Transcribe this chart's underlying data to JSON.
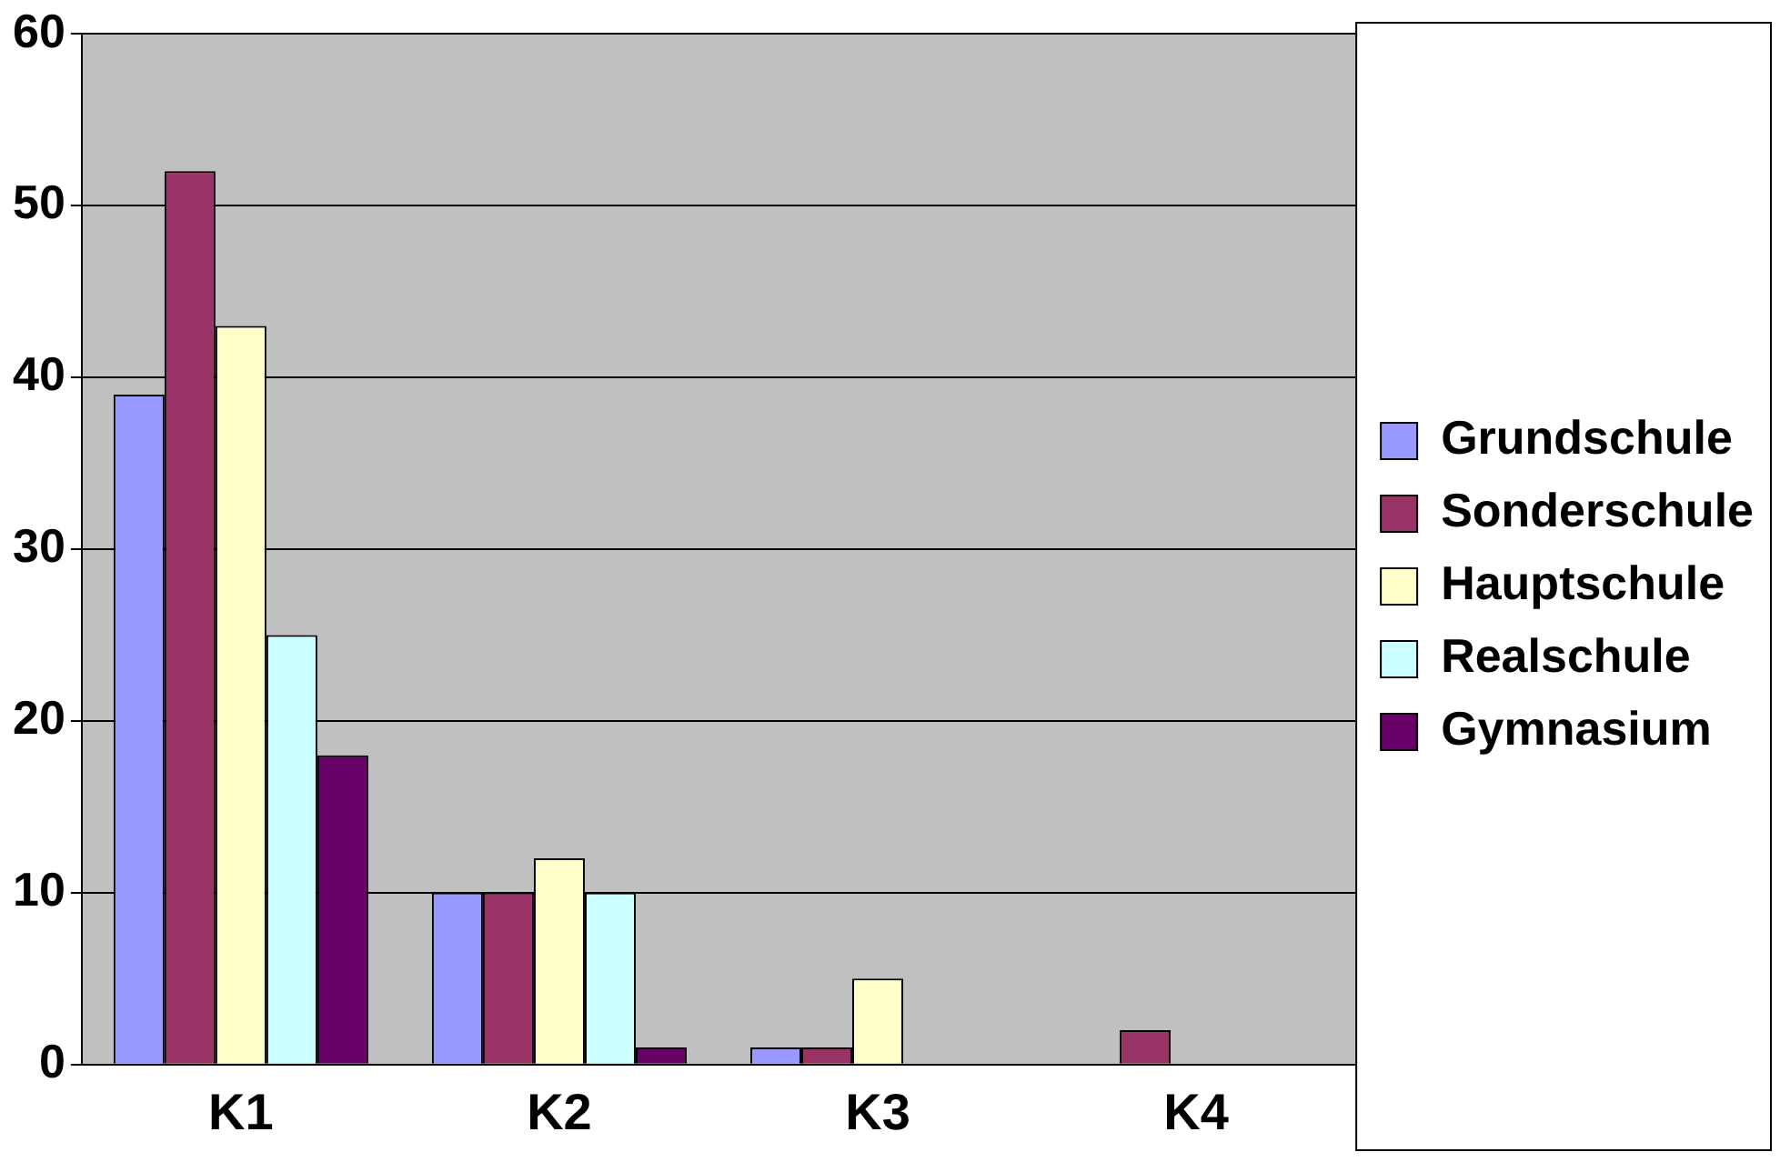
{
  "chart_data": {
    "type": "bar",
    "categories": [
      "K1",
      "K2",
      "K3",
      "K4"
    ],
    "series": [
      {
        "name": "Grundschule",
        "color": "#9999ff",
        "values": [
          39,
          10,
          1,
          0
        ]
      },
      {
        "name": "Sonderschule",
        "color": "#993366",
        "values": [
          52,
          10,
          1,
          2
        ]
      },
      {
        "name": "Hauptschule",
        "color": "#ffffcc",
        "values": [
          43,
          12,
          5,
          0
        ]
      },
      {
        "name": "Realschule",
        "color": "#ccffff",
        "values": [
          25,
          10,
          0,
          0
        ]
      },
      {
        "name": "Gymnasium",
        "color": "#660066",
        "values": [
          18,
          1,
          0,
          0
        ]
      }
    ],
    "ylim": [
      0,
      60
    ],
    "yticks": [
      0,
      10,
      20,
      30,
      40,
      50,
      60
    ],
    "grid": "y",
    "legend": "right"
  }
}
